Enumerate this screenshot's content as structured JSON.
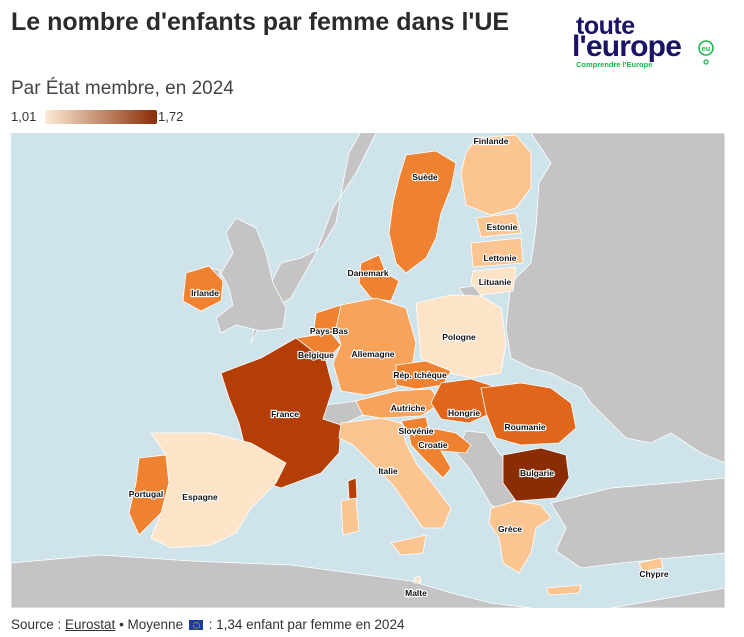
{
  "title": "Le nombre d'enfants par femme dans l'UE",
  "subtitle": "Par État membre, en 2024",
  "legend": {
    "min_label": "1,01",
    "max_label": "1,72",
    "min_value": 1.01,
    "max_value": 1.72,
    "color_low": "#fdebd6",
    "color_high": "#8a2d05"
  },
  "logo": {
    "line1": "toute",
    "line2": "l'europe",
    "tagline": "Comprendre l'Europe",
    "suffix": "eu"
  },
  "colors": {
    "sea": "#cfe3ea",
    "non_eu": "#c4c4c4",
    "border": "#ffffff",
    "logo_navy": "#1b1464",
    "logo_green": "#18b84a"
  },
  "countries": [
    {
      "name": "Finlande",
      "shade": "light"
    },
    {
      "name": "Suède",
      "shade": "medium"
    },
    {
      "name": "Estonie",
      "shade": "light"
    },
    {
      "name": "Lettonie",
      "shade": "light"
    },
    {
      "name": "Lituanie",
      "shade": "very-light"
    },
    {
      "name": "Danemark",
      "shade": "medium"
    },
    {
      "name": "Irlande",
      "shade": "medium"
    },
    {
      "name": "Pays-Bas",
      "shade": "medium"
    },
    {
      "name": "Belgique",
      "shade": "medium"
    },
    {
      "name": "Allemagne",
      "shade": "medium-light"
    },
    {
      "name": "Pologne",
      "shade": "very-light"
    },
    {
      "name": "Rép. tchèque",
      "shade": "medium"
    },
    {
      "name": "France",
      "shade": "dark"
    },
    {
      "name": "Autriche",
      "shade": "medium-light"
    },
    {
      "name": "Hongrie",
      "shade": "medium-dark"
    },
    {
      "name": "Roumanie",
      "shade": "medium-dark"
    },
    {
      "name": "Slovénie",
      "shade": "medium"
    },
    {
      "name": "Croatie",
      "shade": "medium"
    },
    {
      "name": "Italie",
      "shade": "light"
    },
    {
      "name": "Bulgarie",
      "shade": "darkest"
    },
    {
      "name": "Portugal",
      "shade": "medium"
    },
    {
      "name": "Espagne",
      "shade": "very-light"
    },
    {
      "name": "Grèce",
      "shade": "light"
    },
    {
      "name": "Malte",
      "shade": "very-light"
    },
    {
      "name": "Chypre",
      "shade": "light"
    }
  ],
  "footer": {
    "source_prefix": "Source : ",
    "source_link": "Eurostat",
    "average_prefix": " • Moyenne ",
    "average_text": " : 1,34 enfant par femme en 2024"
  }
}
